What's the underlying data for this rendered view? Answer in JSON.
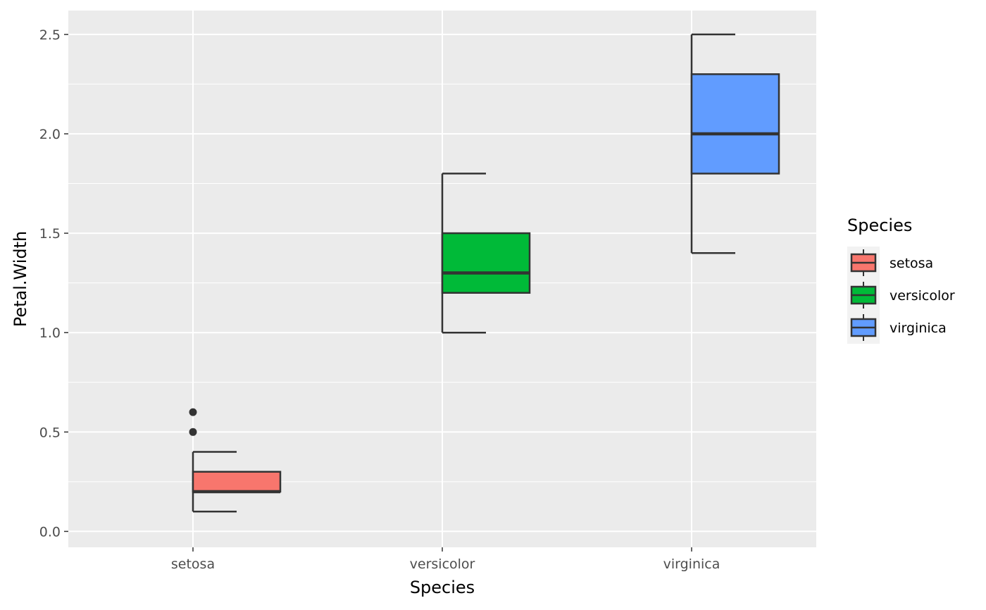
{
  "chart_data": {
    "type": "boxplot",
    "title": "",
    "xlabel": "Species",
    "ylabel": "Petal.Width",
    "ylim": [
      -0.08,
      2.62
    ],
    "y_ticks": [
      0.0,
      0.5,
      1.0,
      1.5,
      2.0,
      2.5
    ],
    "y_tick_labels": [
      "0.0",
      "0.5",
      "1.0",
      "1.5",
      "2.0",
      "2.5"
    ],
    "categories": [
      "setosa",
      "versicolor",
      "virginica"
    ],
    "series": [
      {
        "name": "setosa",
        "color": "#F8766D",
        "min": 0.1,
        "q1": 0.2,
        "median": 0.2,
        "q3": 0.3,
        "max": 0.4,
        "outliers": [
          0.5,
          0.6
        ]
      },
      {
        "name": "versicolor",
        "color": "#00BA38",
        "min": 1.0,
        "q1": 1.2,
        "median": 1.3,
        "q3": 1.5,
        "max": 1.8,
        "outliers": []
      },
      {
        "name": "virginica",
        "color": "#619CFF",
        "min": 1.4,
        "q1": 1.8,
        "median": 2.0,
        "q3": 2.3,
        "max": 2.5,
        "outliers": []
      }
    ],
    "grid": true,
    "panel_background": "#EBEBEB",
    "legend": {
      "title": "Species",
      "position": "right",
      "entries": [
        "setosa",
        "versicolor",
        "virginica"
      ]
    }
  }
}
